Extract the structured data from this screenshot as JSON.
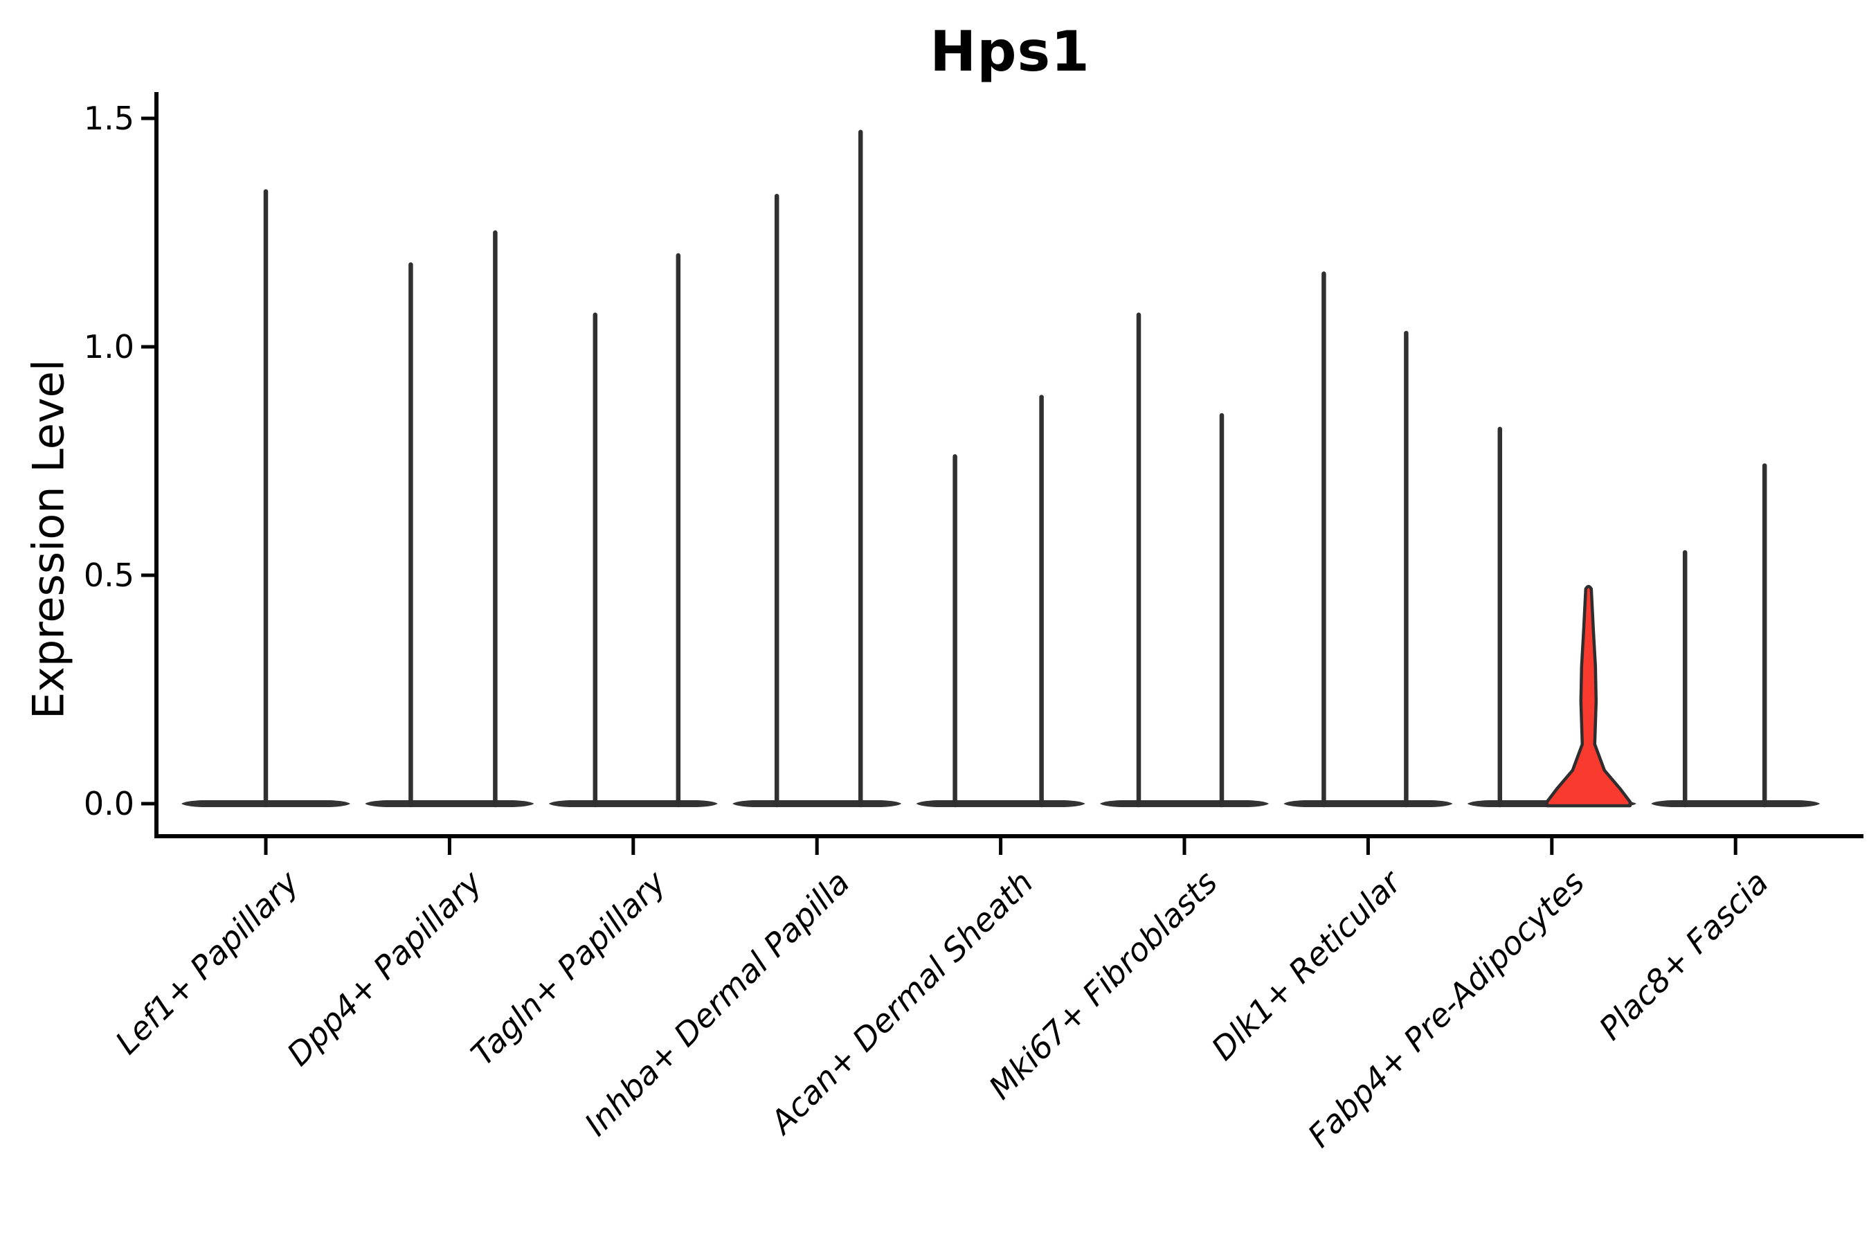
{
  "chart_data": {
    "type": "violin",
    "title": "Hps1",
    "ylabel": "Expression Level",
    "xlabel": "",
    "grid": false,
    "legend": "none",
    "ytick_labels": [
      "0.0",
      "0.5",
      "1.0",
      "1.5"
    ],
    "ytick_values": [
      0.0,
      0.5,
      1.0,
      1.5
    ],
    "ylim": [
      -0.07,
      1.56
    ],
    "colors": {
      "violin_line": "#303030",
      "base_bar": "#333333",
      "axis": "#000000",
      "highlight_fill": "#f93b2f",
      "highlight_stroke": "#2e2e2e"
    },
    "categories": [
      {
        "label": "Lef1+ Papillary",
        "violins": [
          {
            "max": 1.34,
            "dx": 0
          }
        ]
      },
      {
        "label": "Dpp4+ Papillary",
        "violins": [
          {
            "max": 1.18,
            "dx": -56
          },
          {
            "max": 1.25,
            "dx": 66
          }
        ]
      },
      {
        "label": "Tagln+ Papillary",
        "violins": [
          {
            "max": 1.07,
            "dx": -55
          },
          {
            "max": 1.2,
            "dx": 65
          }
        ]
      },
      {
        "label": "Inhba+ Dermal Papilla",
        "violins": [
          {
            "max": 1.33,
            "dx": -58
          },
          {
            "max": 1.47,
            "dx": 63
          }
        ]
      },
      {
        "label": "Acan+ Dermal Sheath",
        "violins": [
          {
            "max": 0.76,
            "dx": -66
          },
          {
            "max": 0.89,
            "dx": 59
          }
        ]
      },
      {
        "label": "Mki67+ Fibroblasts",
        "violins": [
          {
            "max": 1.07,
            "dx": -66
          },
          {
            "max": 0.85,
            "dx": 54
          }
        ]
      },
      {
        "label": "Dlk1+ Reticular",
        "violins": [
          {
            "max": 1.16,
            "dx": -64
          },
          {
            "max": 1.03,
            "dx": 55
          }
        ]
      },
      {
        "label": "Fabp4+ Pre-Adipocytes",
        "violins": [
          {
            "max": 0.82,
            "dx": -75
          },
          {
            "max": 0.47,
            "dx": 53,
            "highlight": true,
            "profile": [
              [
                0.47,
                4
              ],
              [
                0.38,
                7
              ],
              [
                0.3,
                10
              ],
              [
                0.224,
                11
              ],
              [
                0.13,
                9
              ],
              [
                0.073,
                23
              ],
              [
                0.032,
                46
              ],
              [
                0.004,
                60
              ]
            ]
          }
        ]
      },
      {
        "label": "Plac8+ Fascia",
        "violins": [
          {
            "max": 0.55,
            "dx": -73
          },
          {
            "max": 0.74,
            "dx": 42
          }
        ]
      }
    ]
  }
}
